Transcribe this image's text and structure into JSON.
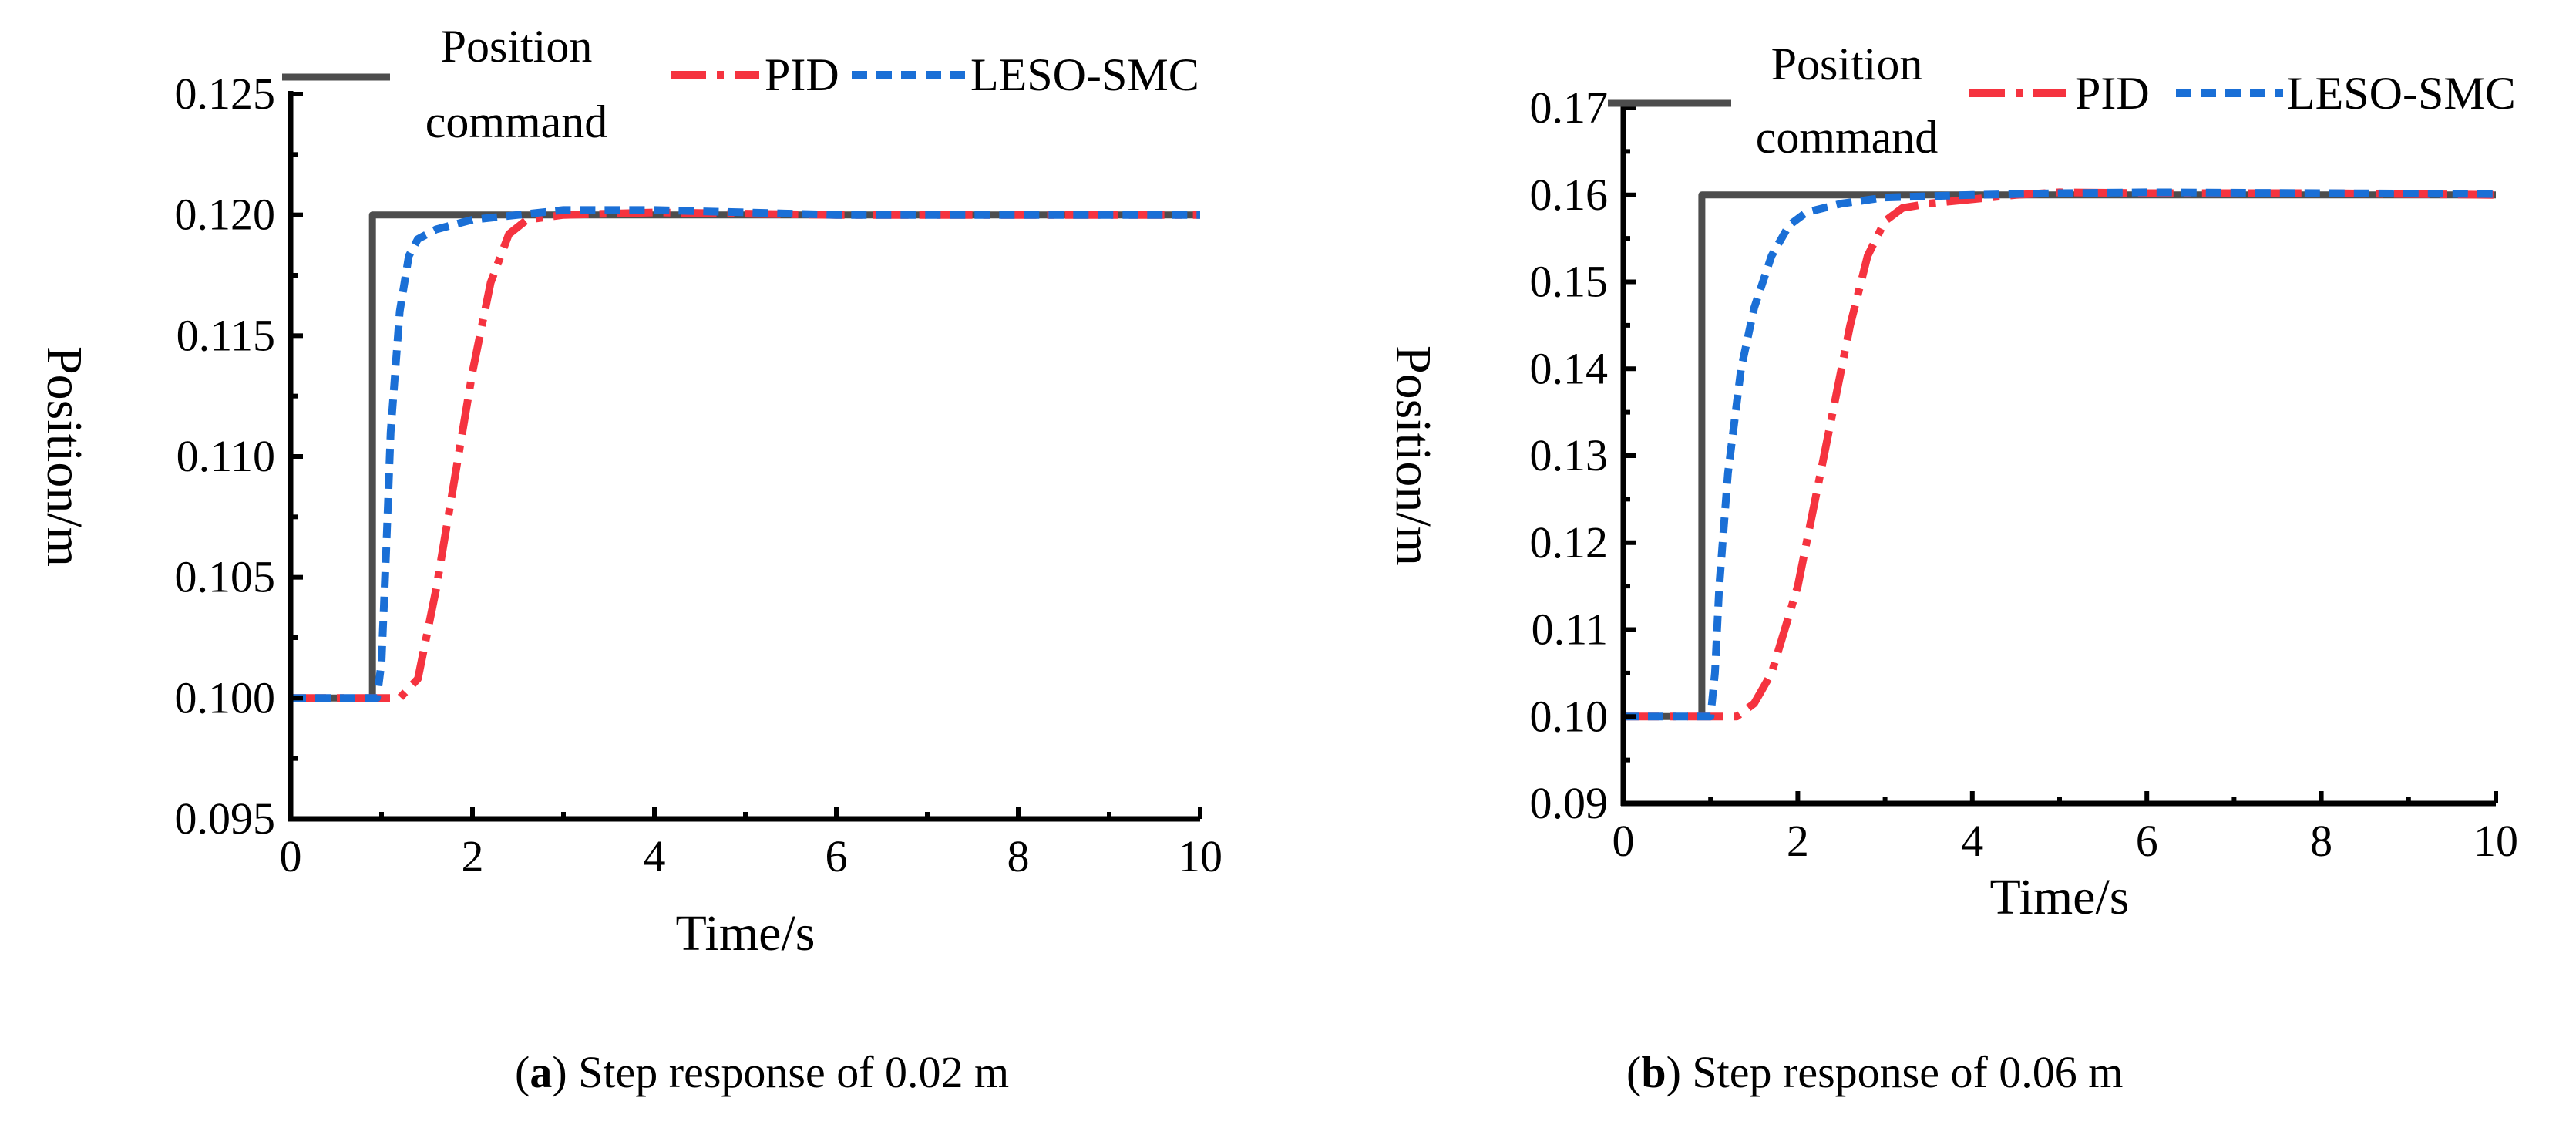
{
  "chart_data": [
    {
      "type": "line",
      "caption_prefix": "(",
      "caption_letter": "a",
      "caption_suffix": ") Step response of 0.02 m",
      "xlabel": "Time/s",
      "ylabel": "Position/m",
      "xlim": [
        0,
        10
      ],
      "ylim": [
        0.095,
        0.125
      ],
      "xticks": [
        0,
        2,
        4,
        6,
        8,
        10
      ],
      "xtick_labels": [
        "0",
        "2",
        "4",
        "6",
        "8",
        "10"
      ],
      "yticks": [
        0.095,
        0.1,
        0.105,
        0.11,
        0.115,
        0.12,
        0.125
      ],
      "ytick_labels": [
        "0.095",
        "0.100",
        "0.105",
        "0.110",
        "0.115",
        "0.120",
        "0.125"
      ],
      "legend": {
        "placement": "top",
        "entries": [
          "Position",
          "command",
          "PID",
          "LESO-SMC"
        ]
      },
      "series": [
        {
          "name": "Position command",
          "color": "#4d4d4d",
          "style": "solid",
          "x": [
            0,
            0.9,
            0.9,
            10
          ],
          "y": [
            0.1,
            0.1,
            0.12,
            0.12
          ]
        },
        {
          "name": "PID",
          "color": "#f5333f",
          "style": "dashdot",
          "x": [
            0,
            1.2,
            1.4,
            1.6,
            1.8,
            2.0,
            2.2,
            2.4,
            2.6,
            3.0,
            4.0,
            6.0,
            8.0,
            10.0
          ],
          "y": [
            0.1,
            0.1,
            0.1008,
            0.1045,
            0.109,
            0.1135,
            0.1172,
            0.1192,
            0.1198,
            0.12,
            0.1201,
            0.12,
            0.12,
            0.12
          ]
        },
        {
          "name": "LESO-SMC",
          "color": "#1a6fd6",
          "style": "dashed",
          "x": [
            0,
            0.95,
            1.0,
            1.05,
            1.1,
            1.2,
            1.3,
            1.4,
            1.6,
            2.0,
            2.5,
            3.0,
            4.0,
            5.0,
            6.0,
            8.0,
            10.0
          ],
          "y": [
            0.1,
            0.1,
            0.1015,
            0.106,
            0.111,
            0.116,
            0.1183,
            0.119,
            0.1194,
            0.1198,
            0.12,
            0.1202,
            0.1202,
            0.1201,
            0.12,
            0.12,
            0.12
          ]
        }
      ]
    },
    {
      "type": "line",
      "caption_prefix": "(",
      "caption_letter": "b",
      "caption_suffix": ") Step response of 0.06 m",
      "xlabel": "Time/s",
      "ylabel": "Position/m",
      "xlim": [
        0,
        10
      ],
      "ylim": [
        0.09,
        0.17
      ],
      "xticks": [
        0,
        2,
        4,
        6,
        8,
        10
      ],
      "xtick_labels": [
        "0",
        "2",
        "4",
        "6",
        "8",
        "10"
      ],
      "yticks": [
        0.09,
        0.1,
        0.11,
        0.12,
        0.13,
        0.14,
        0.15,
        0.16,
        0.17
      ],
      "ytick_labels": [
        "0.09",
        "0.10",
        "0.11",
        "0.12",
        "0.13",
        "0.14",
        "0.15",
        "0.16",
        "0.17"
      ],
      "legend": {
        "placement": "top",
        "entries": [
          "Position",
          "command",
          "PID",
          "LESO-SMC"
        ]
      },
      "series": [
        {
          "name": "Position command",
          "color": "#4d4d4d",
          "style": "solid",
          "x": [
            0,
            0.9,
            0.9,
            10
          ],
          "y": [
            0.1,
            0.1,
            0.16,
            0.16
          ]
        },
        {
          "name": "PID",
          "color": "#f5333f",
          "style": "dashdot",
          "x": [
            0,
            1.3,
            1.5,
            1.7,
            2.0,
            2.3,
            2.6,
            2.8,
            3.0,
            3.2,
            3.5,
            4.0,
            4.5,
            5.0,
            6.0,
            8.0,
            10.0
          ],
          "y": [
            0.1,
            0.1,
            0.1015,
            0.105,
            0.115,
            0.13,
            0.145,
            0.153,
            0.157,
            0.1585,
            0.159,
            0.1595,
            0.16,
            0.1603,
            0.1602,
            0.1602,
            0.16
          ]
        },
        {
          "name": "LESO-SMC",
          "color": "#1a6fd6",
          "style": "dashed",
          "x": [
            0,
            1.0,
            1.05,
            1.1,
            1.2,
            1.35,
            1.5,
            1.7,
            1.9,
            2.1,
            2.5,
            3.0,
            4.0,
            5.0,
            6.0,
            8.0,
            10.0
          ],
          "y": [
            0.1,
            0.1,
            0.105,
            0.115,
            0.128,
            0.14,
            0.147,
            0.153,
            0.1565,
            0.158,
            0.159,
            0.1597,
            0.16,
            0.1602,
            0.1603,
            0.1602,
            0.1601
          ]
        }
      ]
    }
  ]
}
